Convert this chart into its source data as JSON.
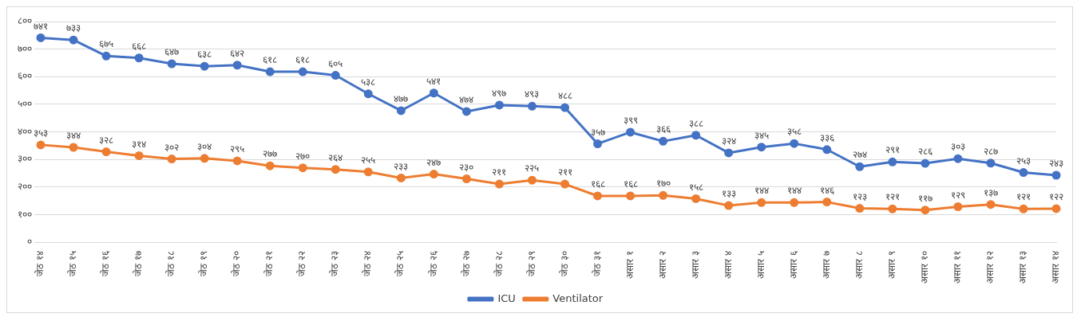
{
  "chart_data": {
    "type": "line",
    "categories": [
      "जेठ १४",
      "जेठ १५",
      "जेठ १६",
      "जेठ १७",
      "जेठ १८",
      "जेठ १९",
      "जेठ २०",
      "जेठ २१",
      "जेठ २२",
      "जेठ २३",
      "जेठ २४",
      "जेठ २५",
      "जेठ २६",
      "जेठ २७",
      "जेठ २८",
      "जेठ २९",
      "जेठ ३०",
      "जेठ ३१",
      "असार १",
      "असार २",
      "असार ३",
      "असार ४",
      "असार ५",
      "असार ६",
      "असार ७",
      "असार ८",
      "असार ९",
      "असार १०",
      "असार ११",
      "असार १२",
      "असार १३",
      "असार १४"
    ],
    "series": [
      {
        "name": "ICU",
        "color": "#4472c4",
        "values": [
          741,
          733,
          675,
          668,
          647,
          638,
          642,
          618,
          618,
          605,
          538,
          477,
          541,
          474,
          497,
          493,
          488,
          357,
          399,
          366,
          388,
          324,
          345,
          358,
          336,
          274,
          291,
          286,
          303,
          287,
          253,
          243
        ],
        "value_labels": [
          "७४१",
          "७३३",
          "६७५",
          "६६८",
          "६४७",
          "६३८",
          "६४२",
          "६१८",
          "६१८",
          "६०५",
          "५३८",
          "४७७",
          "५४१",
          "४७४",
          "४९७",
          "४९३",
          "४८८",
          "३५७",
          "३९९",
          "३६६",
          "३८८",
          "३२४",
          "३४५",
          "३५८",
          "३३६",
          "२७४",
          "२९१",
          "२८६",
          "३०३",
          "२८७",
          "२५३",
          "२४३"
        ]
      },
      {
        "name": "Ventilator",
        "color": "#ed7d31",
        "values": [
          353,
          344,
          328,
          314,
          302,
          304,
          295,
          277,
          270,
          264,
          255,
          233,
          247,
          230,
          211,
          225,
          211,
          168,
          168,
          170,
          158,
          133,
          144,
          144,
          146,
          123,
          121,
          117,
          129,
          137,
          121,
          122
        ],
        "value_labels": [
          "३५३",
          "३४४",
          "३२८",
          "३१४",
          "३०२",
          "३०४",
          "२९५",
          "२७७",
          "२७०",
          "२६४",
          "२५५",
          "२३३",
          "२४७",
          "२३०",
          "२११",
          "२२५",
          "२११",
          "१६८",
          "१६८",
          "१७०",
          "१५८",
          "१३३",
          "१४४",
          "१४४",
          "१४६",
          "१२३",
          "१२१",
          "११७",
          "१२९",
          "१३७",
          "१२१",
          "१२२"
        ]
      }
    ],
    "ylim": [
      0,
      800
    ],
    "yticks": [
      {
        "value": 0,
        "label": "०"
      },
      {
        "value": 100,
        "label": "१००"
      },
      {
        "value": 200,
        "label": "२००"
      },
      {
        "value": 300,
        "label": "३००"
      },
      {
        "value": 400,
        "label": "४००"
      },
      {
        "value": 500,
        "label": "५००"
      },
      {
        "value": 600,
        "label": "६००"
      },
      {
        "value": 700,
        "label": "७००"
      },
      {
        "value": 800,
        "label": "८००"
      }
    ],
    "grid": "y",
    "legend": "bottom",
    "marker": "circle",
    "line_style": "solid"
  }
}
